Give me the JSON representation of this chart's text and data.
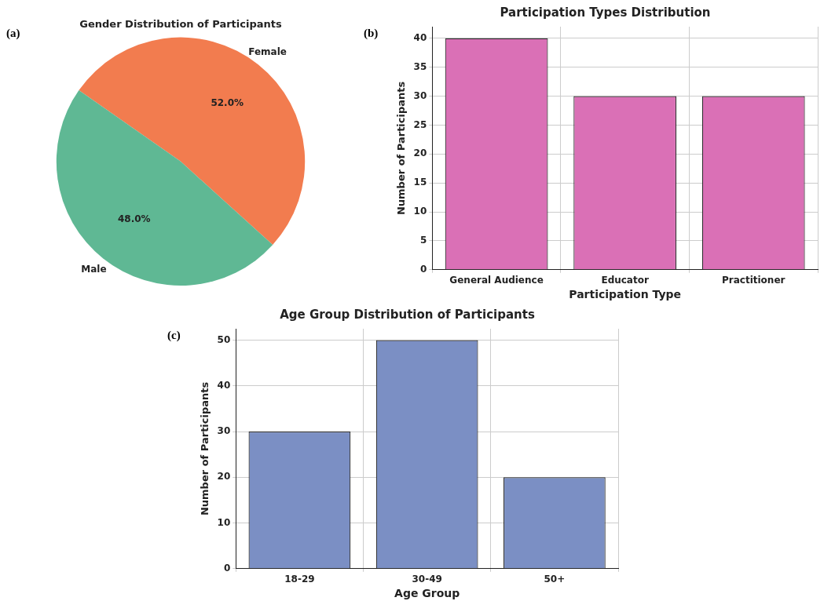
{
  "chart_data": [
    {
      "type": "pie",
      "title": "Gender Distribution of Participants",
      "categories": [
        "Female",
        "Male"
      ],
      "values": [
        52,
        48
      ],
      "colors": [
        "#f27c4f",
        "#5fb894"
      ],
      "value_labels": [
        "52.0%",
        "48.0%"
      ],
      "annotations": [
        "(a)"
      ]
    },
    {
      "type": "bar",
      "title": "Participation Types Distribution",
      "xlabel": "Participation Type",
      "ylabel": "Number of Participants",
      "categories": [
        "General Audience",
        "Educator",
        "Practitioner"
      ],
      "values": [
        40,
        30,
        30
      ],
      "color": "#da70b6",
      "ylim": [
        0,
        42
      ],
      "yticks": [
        0,
        5,
        10,
        15,
        20,
        25,
        30,
        35,
        40
      ],
      "grid": true,
      "annotations": [
        "(b)"
      ]
    },
    {
      "type": "bar",
      "title": "Age Group Distribution of Participants",
      "xlabel": "Age Group",
      "ylabel": "Number of Participants",
      "categories": [
        "18-29",
        "30-49",
        "50+"
      ],
      "values": [
        30,
        50,
        20
      ],
      "color": "#7b8fc4",
      "ylim": [
        0,
        52.5
      ],
      "yticks": [
        0,
        10,
        20,
        30,
        40,
        50
      ],
      "grid": true,
      "annotations": [
        "(c)"
      ]
    }
  ]
}
